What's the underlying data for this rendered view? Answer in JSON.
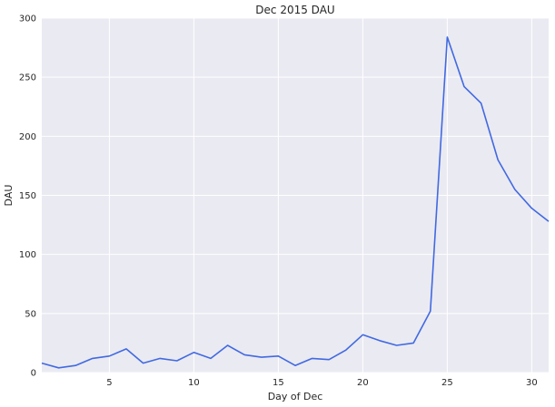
{
  "chart_data": {
    "type": "line",
    "title": "Dec 2015 DAU",
    "xlabel": "Day of Dec",
    "ylabel": "DAU",
    "xlim": [
      1,
      31
    ],
    "ylim": [
      0,
      300
    ],
    "xticks": [
      5,
      10,
      15,
      20,
      25,
      30
    ],
    "yticks": [
      0,
      50,
      100,
      150,
      200,
      250,
      300
    ],
    "grid": true,
    "series": [
      {
        "x": [
          1,
          2,
          3,
          4,
          5,
          6,
          7,
          8,
          9,
          10,
          11,
          12,
          13,
          14,
          15,
          16,
          17,
          18,
          19,
          20,
          21,
          22,
          23,
          24,
          25,
          26,
          27,
          28,
          29,
          30,
          31
        ],
        "values": [
          8,
          4,
          6,
          12,
          14,
          20,
          8,
          12,
          10,
          17,
          12,
          23,
          15,
          13,
          14,
          6,
          12,
          11,
          19,
          32,
          27,
          23,
          25,
          52,
          284,
          242,
          228,
          180,
          155,
          139,
          128
        ]
      }
    ]
  },
  "colors": {
    "background": "#eaeaf2",
    "grid": "#ffffff",
    "line": "#4169e1"
  }
}
